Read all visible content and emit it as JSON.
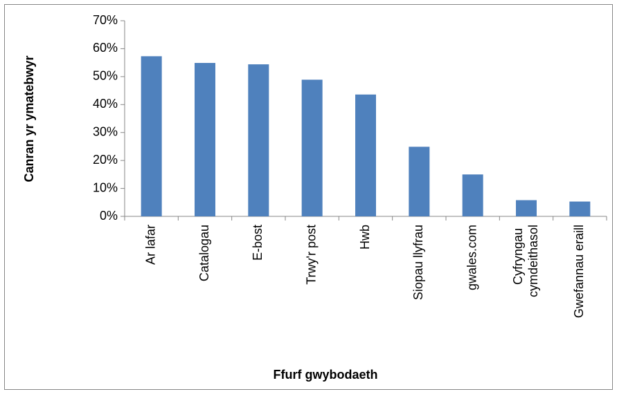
{
  "chart_data": {
    "type": "bar",
    "x_label": "Ffurf gwybodaeth",
    "y_label": "Canran yr ymatebwyr",
    "categories": [
      "Ar lafar",
      "Catalogau",
      "E-bost",
      "Trwy'r post",
      "Hwb",
      "Siopau llyfrau",
      "gwales.com",
      "Cyfryngau cymdeithasol",
      "Gwefannau eraill"
    ],
    "values": [
      57.3,
      54.9,
      54.4,
      48.9,
      43.6,
      24.9,
      15.0,
      5.8,
      5.3
    ],
    "color": "#4f81bd",
    "ylim": [
      0,
      70
    ],
    "yticks": [
      {
        "value": 0,
        "label": "0%"
      },
      {
        "value": 10,
        "label": "10%"
      },
      {
        "value": 20,
        "label": "20%"
      },
      {
        "value": 30,
        "label": "30%"
      },
      {
        "value": 40,
        "label": "40%"
      },
      {
        "value": 50,
        "label": "50%"
      },
      {
        "value": 60,
        "label": "60%"
      },
      {
        "value": 70,
        "label": "70%"
      }
    ],
    "grid": false
  }
}
